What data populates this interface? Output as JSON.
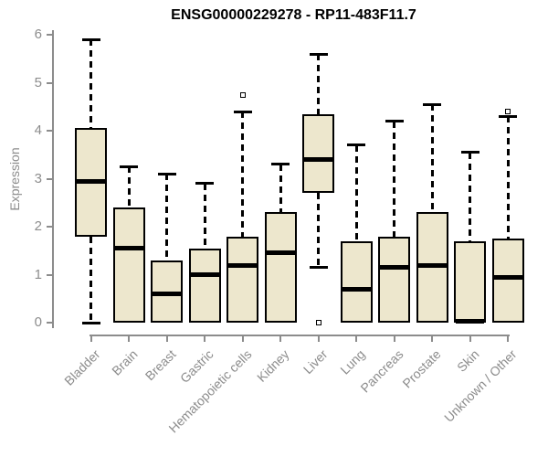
{
  "title": "ENSG00000229278 - RP11-483F11.7",
  "chart_data": {
    "type": "boxplot",
    "title": "ENSG00000229278 - RP11-483F11.7",
    "xlabel": "",
    "ylabel": "Expression",
    "ylim": [
      0,
      6
    ],
    "y_ticks": [
      0,
      1,
      2,
      3,
      4,
      5,
      6
    ],
    "grid": false,
    "legend": "none",
    "categories": [
      "Bladder",
      "Brain",
      "Breast",
      "Gastric",
      "Hematopoietic cells",
      "Kidney",
      "Liver",
      "Lung",
      "Pancreas",
      "Prostate",
      "Skin",
      "Unknown / Other"
    ],
    "series": [
      {
        "name": "Bladder",
        "whisker_low": 0,
        "q1": 1.8,
        "median": 2.95,
        "q3": 4.05,
        "whisker_high": 5.9,
        "outliers": []
      },
      {
        "name": "Brain",
        "whisker_low": 0,
        "q1": 0,
        "median": 1.55,
        "q3": 2.4,
        "whisker_high": 3.25,
        "outliers": []
      },
      {
        "name": "Breast",
        "whisker_low": 0,
        "q1": 0,
        "median": 0.6,
        "q3": 1.3,
        "whisker_high": 3.1,
        "outliers": []
      },
      {
        "name": "Gastric",
        "whisker_low": 0,
        "q1": 0,
        "median": 1.0,
        "q3": 1.55,
        "whisker_high": 2.9,
        "outliers": []
      },
      {
        "name": "Hematopoietic cells",
        "whisker_low": 0,
        "q1": 0,
        "median": 1.2,
        "q3": 1.8,
        "whisker_high": 4.4,
        "outliers": [
          4.75
        ]
      },
      {
        "name": "Kidney",
        "whisker_low": 0,
        "q1": 0,
        "median": 1.45,
        "q3": 2.3,
        "whisker_high": 3.3,
        "outliers": []
      },
      {
        "name": "Liver",
        "whisker_low": 1.15,
        "q1": 2.7,
        "median": 3.4,
        "q3": 4.35,
        "whisker_high": 5.6,
        "outliers": [
          0
        ]
      },
      {
        "name": "Lung",
        "whisker_low": 0,
        "q1": 0,
        "median": 0.7,
        "q3": 1.7,
        "whisker_high": 3.7,
        "outliers": []
      },
      {
        "name": "Pancreas",
        "whisker_low": 0,
        "q1": 0,
        "median": 1.15,
        "q3": 1.8,
        "whisker_high": 4.2,
        "outliers": []
      },
      {
        "name": "Prostate",
        "whisker_low": 0,
        "q1": 0,
        "median": 1.2,
        "q3": 2.3,
        "whisker_high": 4.55,
        "outliers": []
      },
      {
        "name": "Skin",
        "whisker_low": 0,
        "q1": 0,
        "median": 0.03,
        "q3": 1.7,
        "whisker_high": 3.55,
        "outliers": []
      },
      {
        "name": "Unknown / Other",
        "whisker_low": 0,
        "q1": 0,
        "median": 0.95,
        "q3": 1.75,
        "whisker_high": 4.3,
        "outliers": [
          4.4
        ]
      }
    ],
    "colors": {
      "box_fill": "#ede7cd",
      "box_border": "#000000",
      "median": "#000000",
      "whisker": "#000000",
      "outlier": "#000000",
      "axis": "#8c8c8c",
      "axis_text": "#8c8c8c",
      "title_text": "#000000",
      "background": "#ffffff"
    }
  }
}
